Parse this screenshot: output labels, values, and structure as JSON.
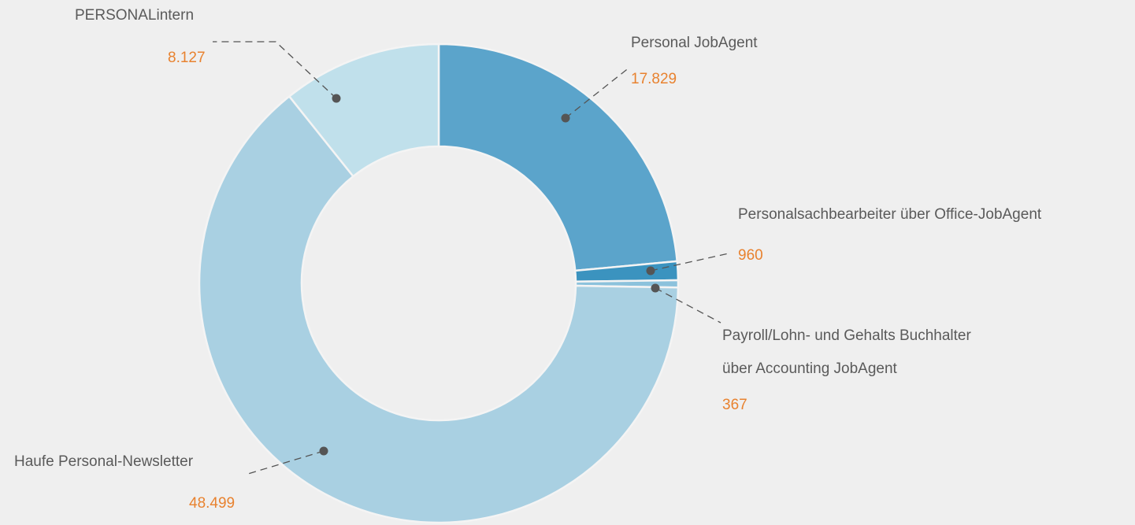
{
  "chart_data": {
    "type": "donut",
    "categories": [
      "Personal JobAgent",
      "Personalsachbearbeiter über Office-JobAgent",
      "Payroll/Lohn- und Gehalts Buchhalter\nüber Accounting JobAgent",
      "Haufe Personal-Newsletter",
      "PERSONALintern"
    ],
    "values": [
      17829,
      960,
      367,
      48499,
      8127
    ],
    "value_labels": [
      "17.829",
      "960",
      "367",
      "48.499",
      "8.127"
    ],
    "colors": [
      "#5ba4cb",
      "#3b93bf",
      "#8cc2dc",
      "#a9d0e2",
      "#c0e0eb"
    ]
  }
}
